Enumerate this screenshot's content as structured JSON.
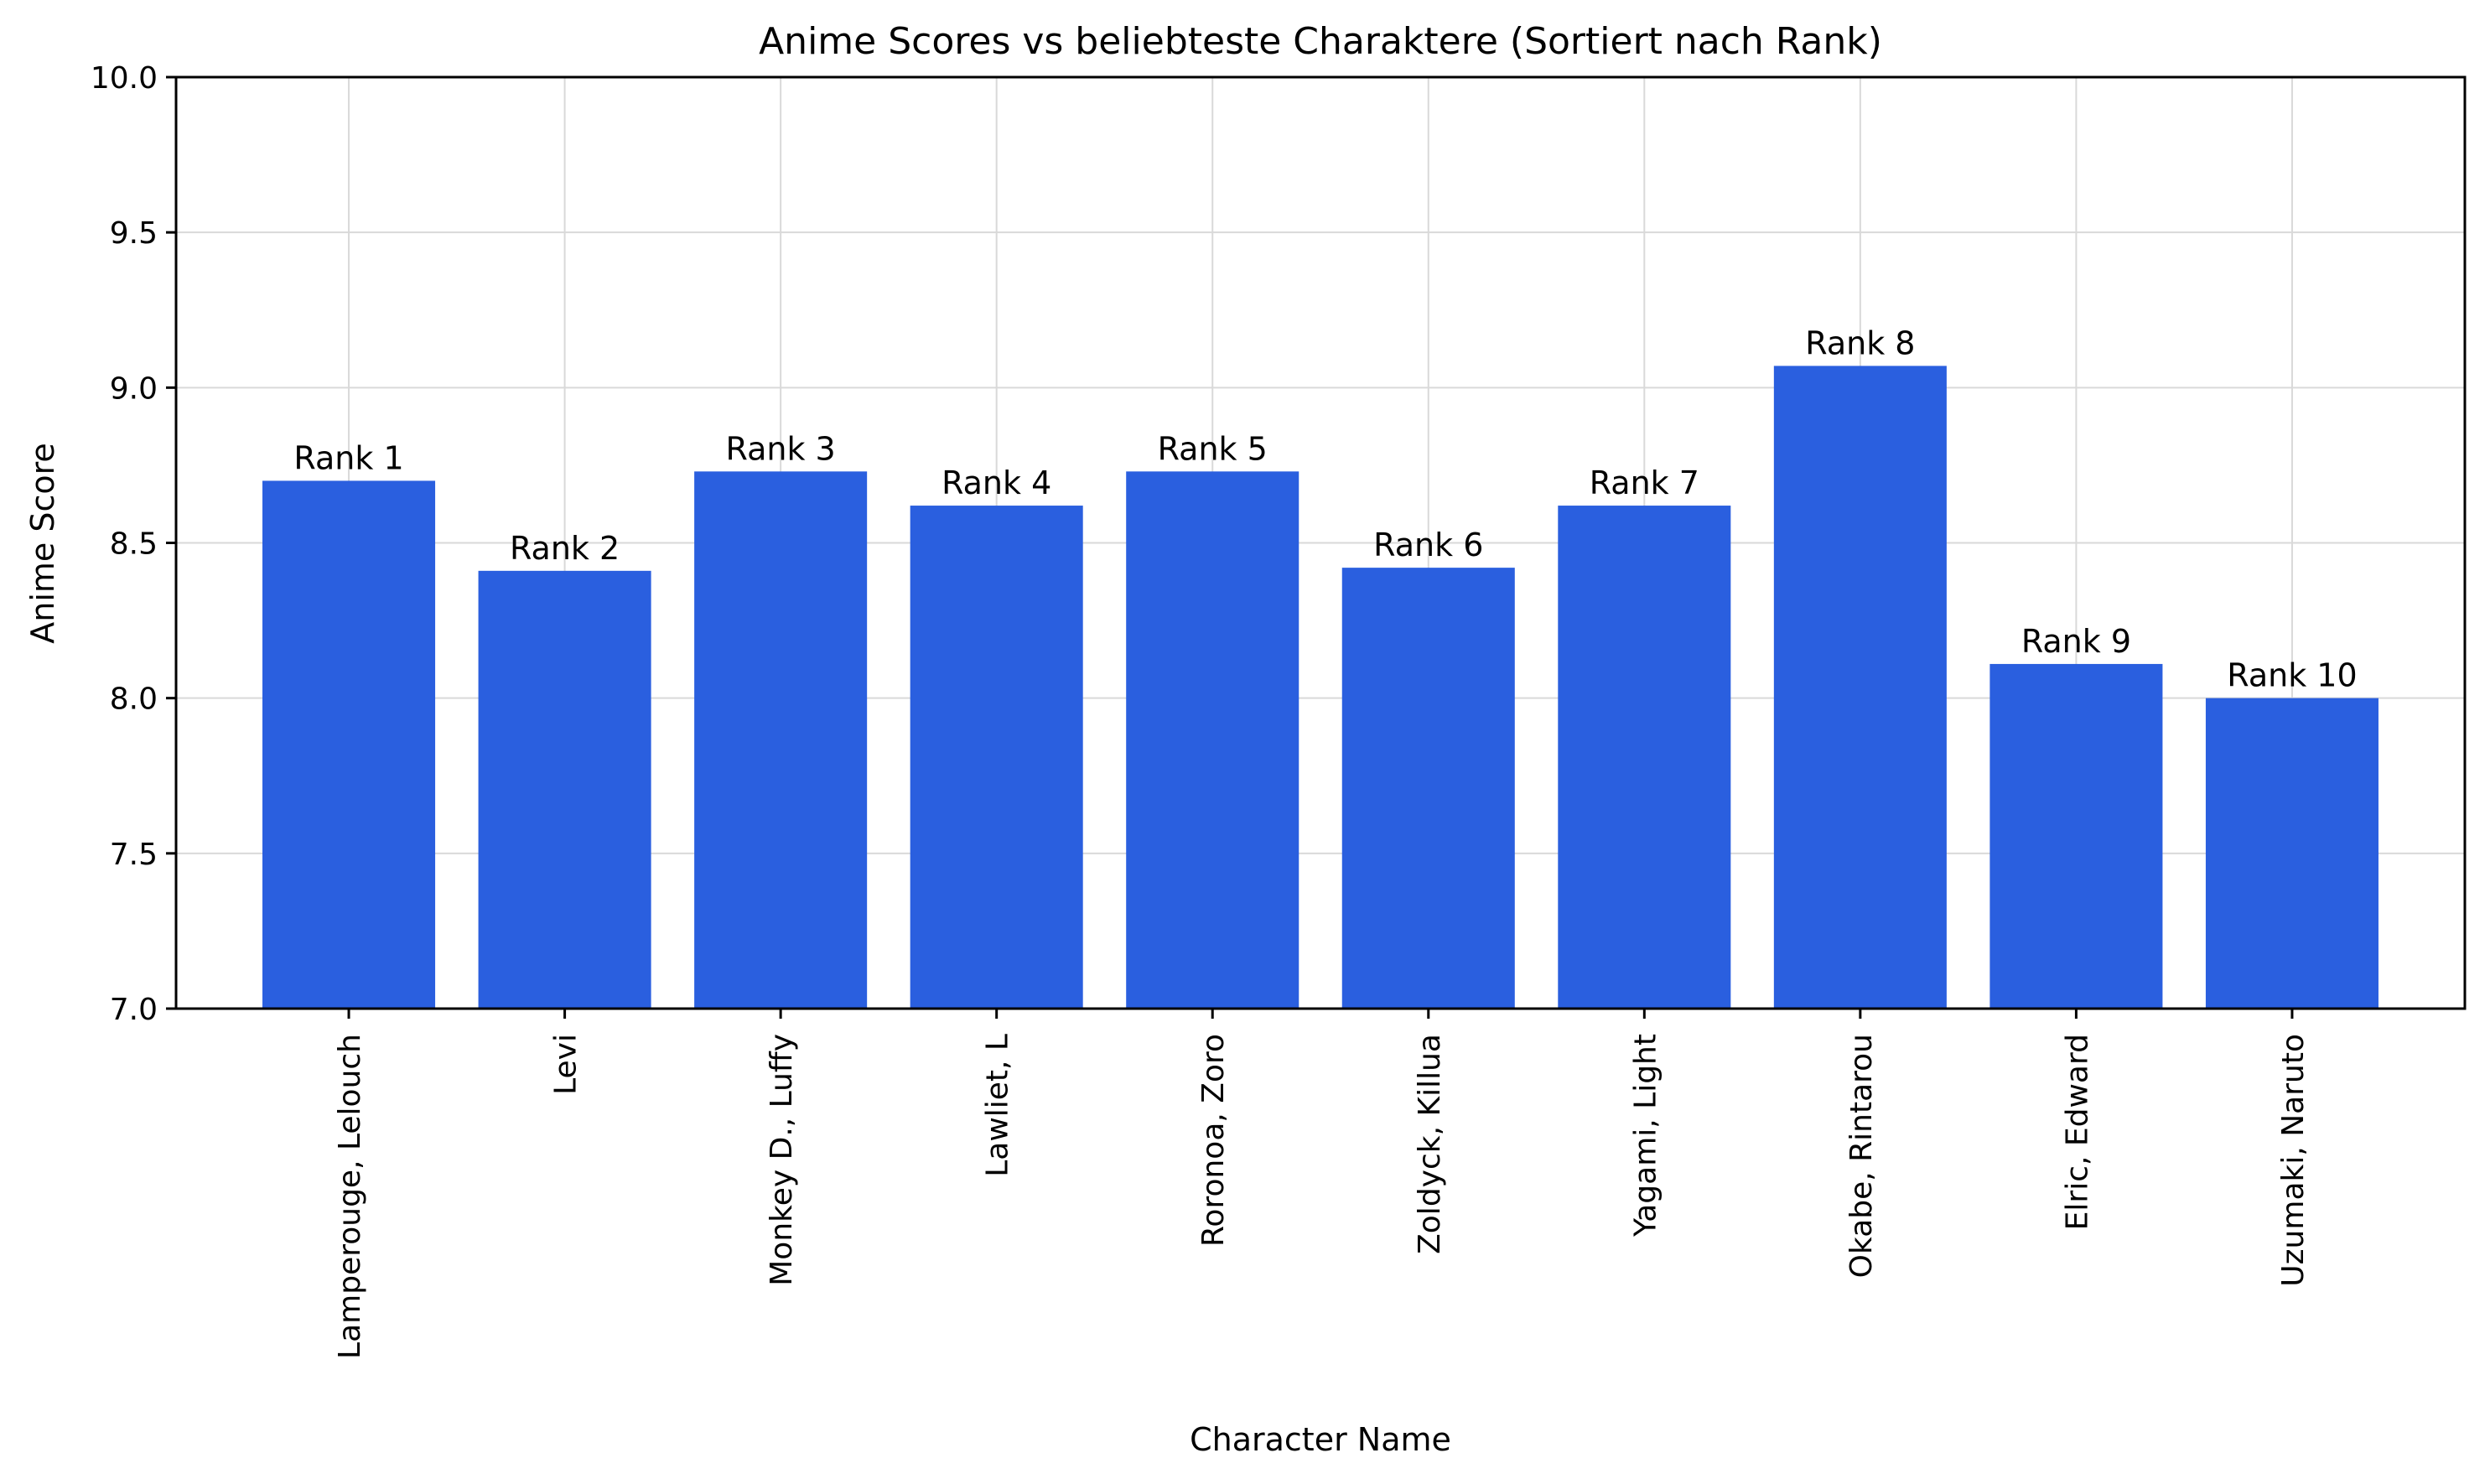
{
  "chart_data": {
    "type": "bar",
    "title": "Anime Scores vs beliebteste Charaktere (Sortiert nach Rank)",
    "xlabel": "Character Name",
    "ylabel": "Anime Score",
    "ylim": [
      7.0,
      10.0
    ],
    "yticks": [
      "7.0",
      "7.5",
      "8.0",
      "8.5",
      "9.0",
      "9.5",
      "10.0"
    ],
    "categories": [
      "Lamperouge, Lelouch",
      "Levi",
      "Monkey D., Luffy",
      "Lawliet, L",
      "Roronoa, Zoro",
      "Zoldyck, Killua",
      "Yagami, Light",
      "Okabe, Rintarou",
      "Elric, Edward",
      "Uzumaki, Naruto"
    ],
    "values": [
      8.7,
      8.41,
      8.73,
      8.62,
      8.73,
      8.42,
      8.62,
      9.07,
      8.11,
      8.0
    ],
    "bar_labels": [
      "Rank 1",
      "Rank 2",
      "Rank 3",
      "Rank 4",
      "Rank 5",
      "Rank 6",
      "Rank 7",
      "Rank 8",
      "Rank 9",
      "Rank 10"
    ],
    "bar_color": "#2a5fdf",
    "grid": true
  }
}
